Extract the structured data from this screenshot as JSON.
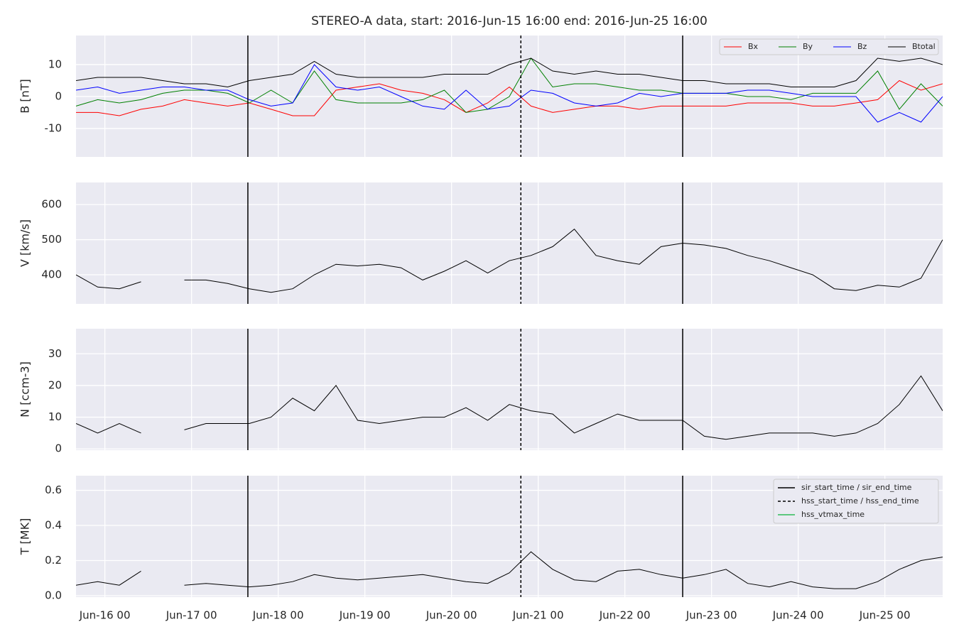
{
  "title": "STEREO-A data, start: 2016-Jun-15 16:00  end: 2016-Jun-25 16:00",
  "xlim": [
    15.667,
    25.667
  ],
  "xticks": [
    {
      "value": 16,
      "label": "Jun-16 00"
    },
    {
      "value": 17,
      "label": "Jun-17 00"
    },
    {
      "value": 18,
      "label": "Jun-18 00"
    },
    {
      "value": 19,
      "label": "Jun-19 00"
    },
    {
      "value": 20,
      "label": "Jun-20 00"
    },
    {
      "value": 21,
      "label": "Jun-21 00"
    },
    {
      "value": 22,
      "label": "Jun-22 00"
    },
    {
      "value": 23,
      "label": "Jun-23 00"
    },
    {
      "value": 24,
      "label": "Jun-24 00"
    },
    {
      "value": 25,
      "label": "Jun-25 00"
    }
  ],
  "x": [
    15.667,
    15.917,
    16.167,
    16.417,
    16.667,
    16.917,
    17.167,
    17.417,
    17.667,
    17.917,
    18.167,
    18.417,
    18.667,
    18.917,
    19.167,
    19.417,
    19.667,
    19.917,
    20.167,
    20.417,
    20.667,
    20.917,
    21.167,
    21.417,
    21.667,
    21.917,
    22.167,
    22.417,
    22.667,
    22.917,
    23.167,
    23.417,
    23.667,
    23.917,
    24.167,
    24.417,
    24.667,
    24.917,
    25.167,
    25.417,
    25.667
  ],
  "events": [
    {
      "name": "sir_start_time / sir_end_time",
      "color": "#000000",
      "dashed": false,
      "times": [
        17.65,
        22.667
      ]
    },
    {
      "name": "hss_start_time / hss_end_time",
      "color": "#000000",
      "dashed": true,
      "times": [
        20.8
      ]
    },
    {
      "name": "hss_vtmax_time",
      "color": "#2ebd59",
      "dashed": false,
      "times": []
    }
  ],
  "grid": true,
  "chart_data": [
    {
      "type": "line",
      "ylabel": "B [nT]",
      "ylim": [
        -18.9,
        19.1
      ],
      "yticks": [
        -10,
        0,
        10
      ],
      "legend": "upper right",
      "series": [
        {
          "name": "Bx",
          "color": "#ff0000",
          "values": [
            -5,
            -5,
            -6,
            -4,
            -3,
            -1,
            -2,
            -3,
            -2,
            -4,
            -6,
            -6,
            2,
            3,
            4,
            2,
            1,
            -1,
            -5,
            -2,
            3,
            -3,
            -5,
            -4,
            -3,
            -3,
            -4,
            -3,
            -3,
            -3,
            -3,
            -2,
            -2,
            -2,
            -3,
            -3,
            -2,
            -1,
            5,
            2,
            4
          ]
        },
        {
          "name": "By",
          "color": "#008000",
          "values": [
            -3,
            -1,
            -2,
            -1,
            1,
            2,
            2,
            1,
            -2,
            2,
            -2,
            8,
            -1,
            -2,
            -2,
            -2,
            -1,
            2,
            -5,
            -4,
            0,
            12,
            3,
            4,
            4,
            3,
            2,
            2,
            1,
            1,
            1,
            0,
            0,
            -1,
            1,
            1,
            1,
            8,
            -4,
            4,
            -3
          ]
        },
        {
          "name": "Bz",
          "color": "#0000ff",
          "values": [
            2,
            3,
            1,
            2,
            3,
            3,
            2,
            2,
            -1,
            -3,
            -2,
            10,
            3,
            2,
            3,
            0,
            -3,
            -4,
            2,
            -4,
            -3,
            2,
            1,
            -2,
            -3,
            -2,
            1,
            0,
            1,
            1,
            1,
            2,
            2,
            1,
            0,
            0,
            0,
            -8,
            -5,
            -8,
            0
          ]
        },
        {
          "name": "Btotal",
          "color": "#000000",
          "values": [
            5,
            6,
            6,
            6,
            5,
            4,
            4,
            3,
            5,
            6,
            7,
            11,
            7,
            6,
            6,
            6,
            6,
            7,
            7,
            7,
            10,
            12,
            8,
            7,
            8,
            7,
            7,
            6,
            5,
            5,
            4,
            4,
            4,
            3,
            3,
            3,
            5,
            12,
            11,
            12,
            10
          ]
        }
      ]
    },
    {
      "type": "line",
      "ylabel": "V [km/s]",
      "ylim": [
        317,
        663
      ],
      "yticks": [
        400,
        500,
        600
      ],
      "series": [
        {
          "color": "#000000",
          "values": [
            400,
            365,
            360,
            380,
            null,
            385,
            385,
            375,
            360,
            350,
            360,
            400,
            430,
            425,
            430,
            420,
            385,
            410,
            440,
            405,
            440,
            455,
            480,
            530,
            455,
            440,
            430,
            480,
            490,
            485,
            475,
            455,
            440,
            420,
            400,
            360,
            355,
            370,
            365,
            390,
            500
          ]
        }
      ]
    },
    {
      "type": "line",
      "ylabel": "N [ccm-3]",
      "ylim": [
        -0.4,
        37.9
      ],
      "yticks": [
        0,
        10,
        20,
        30
      ],
      "series": [
        {
          "color": "#000000",
          "values": [
            8,
            5,
            8,
            5,
            null,
            6,
            8,
            8,
            8,
            10,
            16,
            12,
            20,
            9,
            8,
            9,
            10,
            10,
            13,
            9,
            14,
            12,
            11,
            5,
            8,
            11,
            9,
            9,
            9,
            4,
            3,
            4,
            5,
            5,
            5,
            4,
            5,
            8,
            14,
            23,
            12
          ]
        }
      ]
    },
    {
      "type": "line",
      "ylabel": "T [MK]",
      "ylim": [
        -0.008,
        0.683
      ],
      "yticks": [
        {
          "value": 0,
          "label": "0.0"
        },
        0.2,
        0.4,
        0.6
      ],
      "legend": "upper right",
      "series": [
        {
          "color": "#000000",
          "values": [
            0.06,
            0.08,
            0.06,
            0.14,
            null,
            0.06,
            0.07,
            0.06,
            0.05,
            0.06,
            0.08,
            0.12,
            0.1,
            0.09,
            0.1,
            0.11,
            0.12,
            0.1,
            0.08,
            0.07,
            0.13,
            0.25,
            0.15,
            0.09,
            0.08,
            0.14,
            0.15,
            0.12,
            0.1,
            0.12,
            0.15,
            0.07,
            0.05,
            0.08,
            0.05,
            0.04,
            0.04,
            0.08,
            0.15,
            0.2,
            0.22
          ]
        }
      ]
    }
  ]
}
